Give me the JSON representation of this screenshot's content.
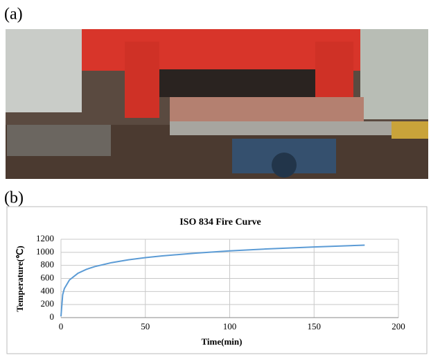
{
  "panel_labels": [
    "(a)",
    "(b)"
  ],
  "chart_data": {
    "type": "line",
    "title": "ISO 834 Fire Curve",
    "x_label": "Time(min)",
    "y_label": "Temperature(℃)",
    "x": [
      0,
      1,
      2,
      5,
      10,
      15,
      20,
      30,
      40,
      50,
      60,
      80,
      100,
      120,
      150,
      180
    ],
    "values": [
      20,
      349,
      445,
      576,
      678,
      739,
      781,
      842,
      885,
      918,
      945,
      988,
      1022,
      1049,
      1082,
      1110
    ],
    "color": "#5b9bd5",
    "xlim": [
      0,
      200
    ],
    "xticks": [
      0,
      50,
      100,
      150,
      200
    ],
    "ylim": [
      0,
      1200
    ],
    "yticks": [
      0,
      200,
      400,
      600,
      800,
      1000,
      1200
    ],
    "grid": true
  }
}
